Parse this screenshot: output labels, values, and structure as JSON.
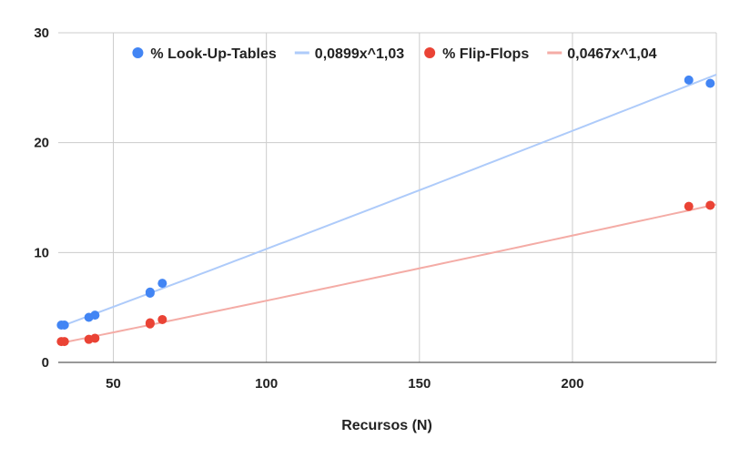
{
  "chart_data": {
    "type": "scatter",
    "title": "",
    "xlabel": "Recursos (N)",
    "ylabel": "",
    "xlim": [
      32,
      247
    ],
    "ylim": [
      0,
      30
    ],
    "x_ticks": [
      50,
      100,
      150,
      200
    ],
    "x_tick_labels": [
      "50",
      "100",
      "150",
      "200"
    ],
    "y_ticks": [
      0,
      10,
      20,
      30
    ],
    "y_tick_labels": [
      "0",
      "10",
      "20",
      "30"
    ],
    "grid": true,
    "legend_position": "top",
    "series": [
      {
        "name": "% Look-Up-Tables",
        "kind": "points",
        "color": "#4285f4",
        "points": [
          [
            33,
            3.4
          ],
          [
            34,
            3.4
          ],
          [
            42,
            4.1
          ],
          [
            44,
            4.3
          ],
          [
            62,
            6.3
          ],
          [
            62,
            6.4
          ],
          [
            66,
            7.2
          ],
          [
            238,
            25.7
          ],
          [
            245,
            25.4
          ]
        ]
      },
      {
        "name": "0,0899x^1,03",
        "kind": "trendline",
        "color": "#aecbfa",
        "coef": 0.0899,
        "exp": 1.03
      },
      {
        "name": "% Flip-Flops",
        "kind": "points",
        "color": "#ea4335",
        "points": [
          [
            33,
            1.9
          ],
          [
            34,
            1.9
          ],
          [
            42,
            2.1
          ],
          [
            44,
            2.2
          ],
          [
            62,
            3.5
          ],
          [
            62,
            3.6
          ],
          [
            66,
            3.9
          ],
          [
            238,
            14.2
          ],
          [
            245,
            14.3
          ]
        ]
      },
      {
        "name": "0,0467x^1,04",
        "kind": "trendline",
        "color": "#f4aca6",
        "coef": 0.0467,
        "exp": 1.04
      }
    ]
  }
}
